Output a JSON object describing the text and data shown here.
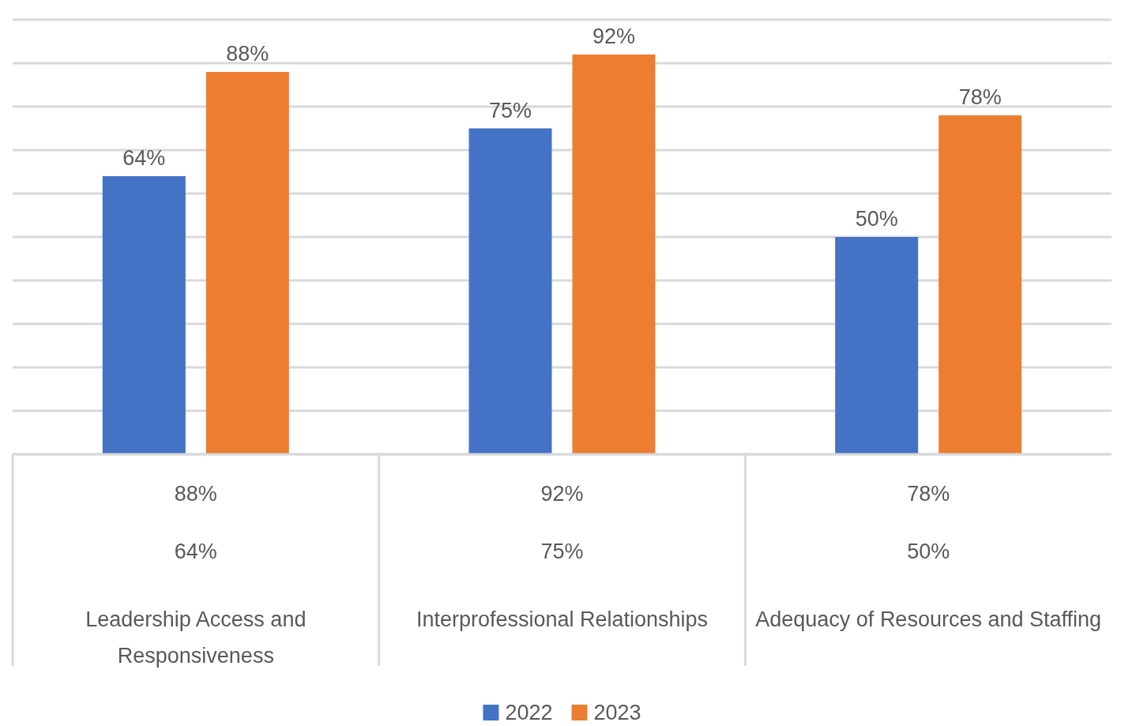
{
  "chart_data": {
    "type": "bar",
    "categories": [
      "Leadership Access and Responsiveness",
      "Interprofessional Relationships",
      "Adequacy of Resources and Staffing"
    ],
    "series": [
      {
        "name": "2022",
        "color": "#4472c4",
        "values": [
          64,
          75,
          50
        ],
        "value_labels": [
          "64%",
          "75%",
          "50%"
        ]
      },
      {
        "name": "2023",
        "color": "#ed7d31",
        "values": [
          88,
          92,
          78
        ],
        "value_labels": [
          "88%",
          "92%",
          "78%"
        ]
      }
    ],
    "ylim": [
      0,
      100
    ],
    "yticks": [
      {
        "value": 0,
        "label": null
      },
      {
        "value": 10,
        "label": null
      },
      {
        "value": 20,
        "label": null
      },
      {
        "value": 30,
        "label": null
      },
      {
        "value": 40,
        "label": null
      },
      {
        "value": 50,
        "label": null
      },
      {
        "value": 60,
        "label": null
      },
      {
        "value": 70,
        "label": null
      },
      {
        "value": 80,
        "label": null
      },
      {
        "value": 90,
        "label": null
      },
      {
        "value": 100,
        "label": null
      }
    ],
    "tick_labels": "x",
    "grid": "y",
    "legend": "bottom"
  }
}
